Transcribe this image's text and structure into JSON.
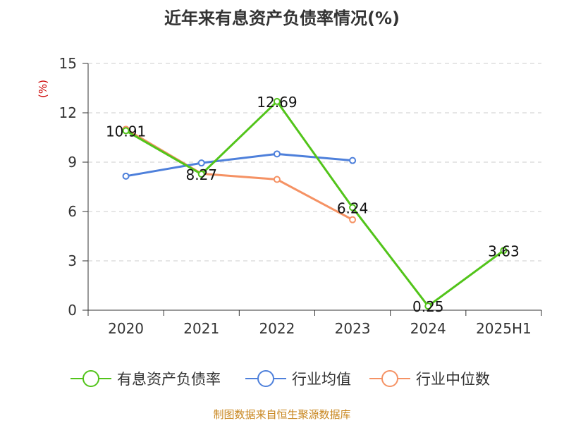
{
  "title": "近年来有息资产负债率情况(%)",
  "source": "制图数据来自恒生聚源数据库",
  "chart_data": {
    "type": "line",
    "categories": [
      "2020",
      "2021",
      "2022",
      "2023",
      "2024",
      "2025H1"
    ],
    "yunit": "(%)",
    "ylim": [
      0,
      15
    ],
    "yticks": [
      0,
      3,
      6,
      9,
      12,
      15
    ],
    "grid": true,
    "legend_position": "bottom",
    "series": [
      {
        "name": "有息资产负债率",
        "color": "#52c41a",
        "values": [
          10.91,
          8.27,
          12.69,
          6.24,
          0.25,
          3.63
        ],
        "show_labels": true
      },
      {
        "name": "行业均值",
        "color": "#4e80db",
        "values": [
          8.15,
          8.95,
          9.5,
          9.1,
          null,
          null
        ],
        "show_labels": false
      },
      {
        "name": "行业中位数",
        "color": "#f59264",
        "values": [
          11.0,
          8.3,
          7.95,
          5.5,
          null,
          null
        ],
        "show_labels": false
      }
    ]
  }
}
